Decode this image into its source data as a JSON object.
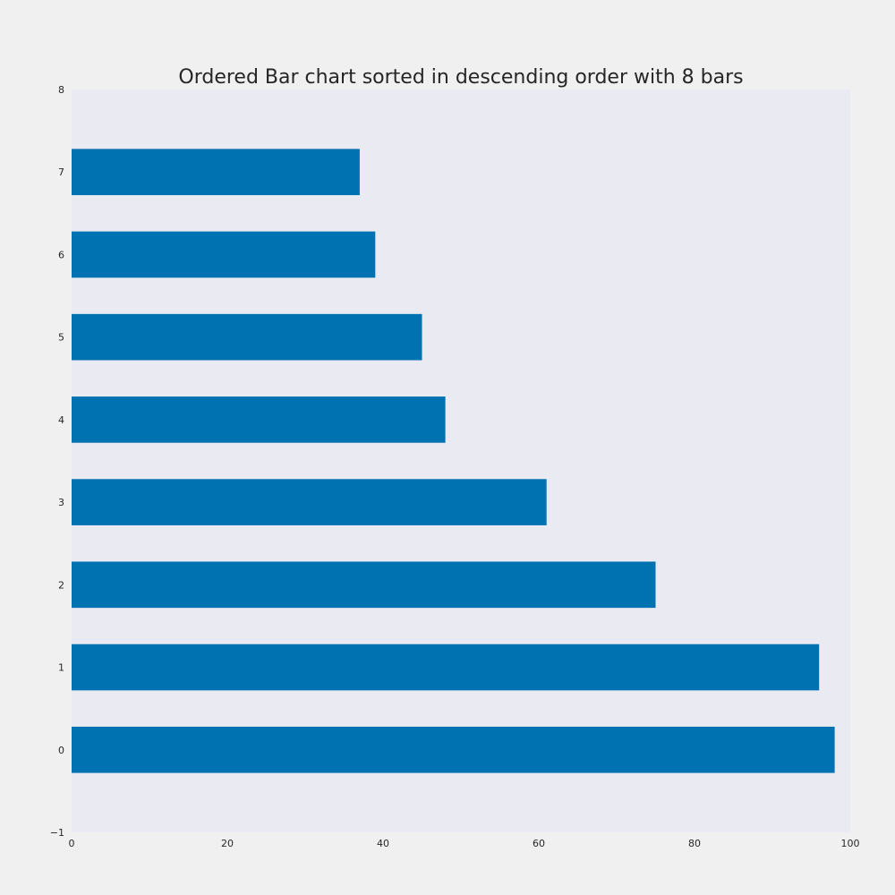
{
  "chart_data": {
    "type": "bar",
    "orientation": "horizontal",
    "title": "Ordered Bar chart sorted in descending order with 8 bars",
    "xlabel": "",
    "ylabel": "",
    "categories": [
      "0",
      "1",
      "2",
      "3",
      "4",
      "5",
      "6",
      "7"
    ],
    "values": [
      98,
      96,
      75,
      61,
      48,
      45,
      39,
      37
    ],
    "xlim": [
      0,
      100
    ],
    "ylim": [
      -1,
      8
    ],
    "xticks": [
      0,
      20,
      40,
      60,
      80,
      100
    ],
    "yticks": [
      -1,
      0,
      1,
      2,
      3,
      4,
      5,
      6,
      7,
      8
    ],
    "ytick_labels": [
      "−1",
      "0",
      "1",
      "2",
      "3",
      "4",
      "5",
      "6",
      "7",
      "8"
    ],
    "bar_color": "#0072b2",
    "plot_background": "#eaeaf2",
    "figure_background": "#f0f0f0",
    "grid": false,
    "legend": "none"
  }
}
